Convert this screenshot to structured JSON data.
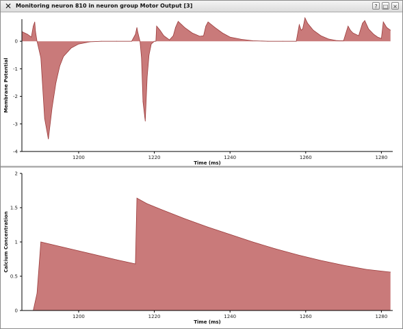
{
  "window": {
    "title": "Monitoring neuron 810 in neuron group Motor Output [3]",
    "app_icon": "x-window-icon",
    "buttons": {
      "help": "?",
      "maximize": "□",
      "close": "×"
    }
  },
  "chart_data": [
    {
      "type": "area",
      "title": "",
      "xlabel": "Time (ms)",
      "ylabel": "Membrane Potential",
      "xlim": [
        1185,
        1283
      ],
      "ylim": [
        -4,
        0.8
      ],
      "xticks": [
        1200,
        1220,
        1240,
        1260,
        1280
      ],
      "yticks": [
        0,
        -1,
        -2,
        -3,
        -4
      ],
      "fill_color": "#c97a7a",
      "line_color": "#9a3a3a",
      "series": [
        {
          "x": [
            1185,
            1186.5,
            1187.5,
            1188,
            1188.4,
            1188.6,
            1189,
            1190,
            1191,
            1192,
            1193,
            1194,
            1195,
            1196,
            1198,
            1200,
            1203,
            1206,
            1210,
            1214,
            1215,
            1215.4,
            1215.6,
            1216.2,
            1216.6,
            1217,
            1217.6,
            1218.1,
            1218.6,
            1219.2,
            1220,
            1220.4,
            1220.6,
            1221.5,
            1222.5,
            1224,
            1225,
            1225.5,
            1225.6,
            1226.3,
            1228,
            1230,
            1232,
            1233,
            1233.6,
            1234.2,
            1236,
            1238,
            1240,
            1243,
            1246,
            1250,
            1254,
            1257.5,
            1258.3,
            1258.8,
            1259.2,
            1259.6,
            1259.8,
            1260.5,
            1262,
            1264,
            1266,
            1268,
            1269,
            1270,
            1271.2,
            1271.8,
            1272.5,
            1274,
            1275,
            1275.6,
            1276.6,
            1278,
            1279,
            1280,
            1280.5,
            1281.4,
            1282.4
          ],
          "values": [
            0.35,
            0.25,
            0.15,
            0.55,
            0.7,
            0.35,
            0.0,
            -0.6,
            -2.8,
            -3.55,
            -2.4,
            -1.5,
            -0.9,
            -0.55,
            -0.25,
            -0.1,
            -0.02,
            0.0,
            0.0,
            0.0,
            0.25,
            0.5,
            0.35,
            0.0,
            -0.6,
            -2.2,
            -2.9,
            -1.3,
            -0.5,
            -0.1,
            0.0,
            0.0,
            0.55,
            0.4,
            0.2,
            0.05,
            0.2,
            0.45,
            0.5,
            0.72,
            0.5,
            0.3,
            0.18,
            0.2,
            0.55,
            0.7,
            0.5,
            0.3,
            0.15,
            0.07,
            0.02,
            0.0,
            0.0,
            0.0,
            0.6,
            0.4,
            0.45,
            0.7,
            0.85,
            0.65,
            0.4,
            0.2,
            0.08,
            0.03,
            0.02,
            0.02,
            0.55,
            0.4,
            0.3,
            0.2,
            0.65,
            0.75,
            0.45,
            0.25,
            0.15,
            0.1,
            0.7,
            0.5,
            0.4
          ]
        }
      ]
    },
    {
      "type": "area",
      "title": "",
      "xlabel": "Time (ms)",
      "ylabel": "Calcium Concentration",
      "xlim": [
        1185,
        1283
      ],
      "ylim": [
        0,
        2
      ],
      "xticks": [
        1200,
        1220,
        1240,
        1260,
        1280
      ],
      "yticks": [
        0,
        0.5,
        1,
        1.5,
        2
      ],
      "fill_color": "#c97a7a",
      "line_color": "#9a3a3a",
      "series": [
        {
          "x": [
            1185,
            1188,
            1189,
            1190,
            1200,
            1210,
            1215,
            1215.4,
            1218,
            1222,
            1228,
            1234,
            1240,
            1246,
            1252,
            1258,
            1264,
            1270,
            1276,
            1282.4
          ],
          "values": [
            0,
            0,
            0.25,
            1.0,
            0.87,
            0.74,
            0.68,
            1.64,
            1.56,
            1.47,
            1.34,
            1.22,
            1.11,
            1.0,
            0.9,
            0.81,
            0.73,
            0.66,
            0.6,
            0.56
          ]
        }
      ]
    }
  ]
}
